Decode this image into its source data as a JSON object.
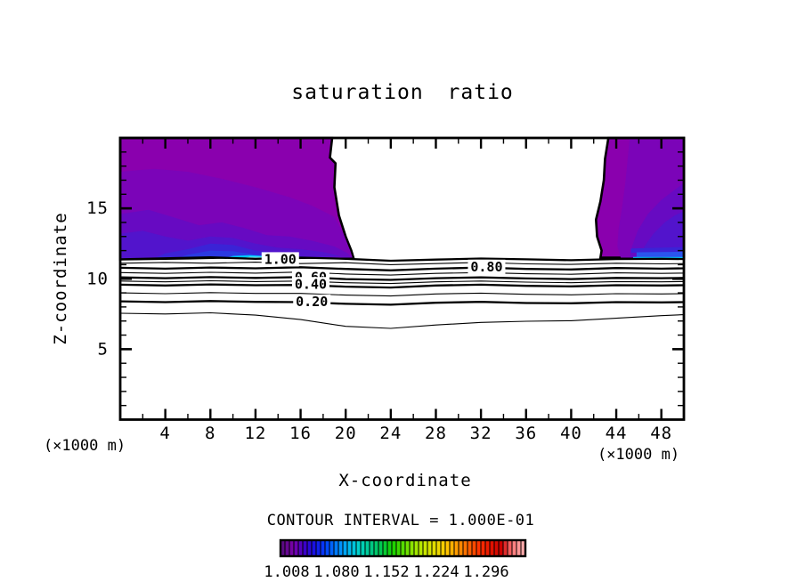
{
  "title": "saturation ratio",
  "contour_note": "CONTOUR INTERVAL = 1.000E-01",
  "axes": {
    "x_label": "X-coordinate",
    "z_label": "Z-coordinate",
    "x_unit": "(×1000 m)",
    "x_range": [
      0,
      50
    ],
    "z_range": [
      0,
      20
    ],
    "x_ticks_major": [
      4,
      8,
      12,
      16,
      20,
      24,
      28,
      32,
      36,
      40,
      44,
      48
    ],
    "x_ticks_minor": [
      2,
      6,
      10,
      14,
      18,
      22,
      26,
      30,
      34,
      38,
      42,
      46,
      50
    ],
    "z_ticks_major": [
      5,
      10,
      15
    ],
    "z_ticks_minor": [
      1,
      2,
      3,
      4,
      6,
      7,
      8,
      9,
      11,
      12,
      13,
      14,
      16,
      17,
      18,
      19
    ]
  },
  "colorbar": {
    "labels": [
      "1.008",
      "1.080",
      "1.152",
      "1.224",
      "1.296"
    ],
    "cells": 55,
    "stops": [
      "#5a0a82",
      "#7a00aa",
      "#3c00c8",
      "#1414e6",
      "#0046ff",
      "#0082ff",
      "#00b4f0",
      "#00d2c8",
      "#00c88c",
      "#00c850",
      "#14d200",
      "#55dc00",
      "#96e600",
      "#c8e600",
      "#e6dc00",
      "#ffc800",
      "#ff9600",
      "#ff6400",
      "#ff3200",
      "#e61400",
      "#cd0000",
      "#ff7878",
      "#ffaaaa"
    ]
  },
  "chart_data": {
    "type": "contour",
    "title": "saturation ratio",
    "xlabel": "X-coordinate",
    "ylabel": "Z-coordinate",
    "xlim": [
      0,
      50
    ],
    "zlim": [
      0,
      20
    ],
    "contour_interval": 0.1,
    "line_contours": [
      {
        "value": 1.0,
        "bold": true,
        "label_at": {
          "x": 14.2,
          "z": 11.38
        },
        "x": [
          0,
          4,
          8,
          12,
          16,
          20,
          24,
          28,
          32,
          36,
          40,
          44,
          48,
          50
        ],
        "z": [
          11.38,
          11.45,
          11.52,
          11.42,
          11.5,
          11.42,
          11.28,
          11.36,
          11.44,
          11.38,
          11.32,
          11.4,
          11.42,
          11.4
        ]
      },
      {
        "value": 0.9,
        "bold": false,
        "x": [
          0,
          4,
          8,
          12,
          16,
          20,
          24,
          28,
          32,
          36,
          40,
          44,
          48,
          50
        ],
        "z": [
          11.1,
          11.16,
          11.1,
          11.18,
          11.08,
          11.14,
          11.0,
          11.08,
          11.16,
          11.06,
          11.02,
          11.1,
          11.06,
          11.08
        ]
      },
      {
        "value": 0.8,
        "bold": true,
        "label_at": {
          "x": 32.5,
          "z": 10.85
        },
        "x": [
          0,
          4,
          8,
          12,
          16,
          20,
          24,
          28,
          32,
          36,
          40,
          44,
          48,
          50
        ],
        "z": [
          10.78,
          10.72,
          10.8,
          10.74,
          10.82,
          10.7,
          10.6,
          10.72,
          10.8,
          10.7,
          10.66,
          10.76,
          10.72,
          10.74
        ]
      },
      {
        "value": 0.7,
        "bold": false,
        "x": [
          0,
          4,
          8,
          12,
          16,
          20,
          24,
          28,
          32,
          36,
          40,
          44,
          48,
          50
        ],
        "z": [
          10.44,
          10.38,
          10.46,
          10.4,
          10.48,
          10.34,
          10.26,
          10.38,
          10.44,
          10.36,
          10.32,
          10.42,
          10.38,
          10.4
        ]
      },
      {
        "value": 0.6,
        "bold": true,
        "label_at": {
          "x": 16.9,
          "z": 10.1
        },
        "x": [
          0,
          4,
          8,
          12,
          16,
          20,
          24,
          28,
          32,
          36,
          40,
          44,
          48,
          50
        ],
        "z": [
          10.1,
          10.04,
          10.12,
          10.06,
          10.12,
          9.98,
          9.92,
          10.04,
          10.1,
          10.02,
          9.98,
          10.06,
          10.04,
          10.06
        ]
      },
      {
        "value": 0.5,
        "bold": false,
        "x": [
          0,
          4,
          8,
          12,
          16,
          20,
          24,
          28,
          32,
          36,
          40,
          44,
          48,
          50
        ],
        "z": [
          9.84,
          9.78,
          9.86,
          9.8,
          9.84,
          9.72,
          9.66,
          9.78,
          9.84,
          9.76,
          9.72,
          9.8,
          9.78,
          9.8
        ]
      },
      {
        "value": 0.4,
        "bold": true,
        "label_at": {
          "x": 16.9,
          "z": 9.62
        },
        "x": [
          0,
          4,
          8,
          12,
          16,
          20,
          24,
          28,
          32,
          36,
          40,
          44,
          48,
          50
        ],
        "z": [
          9.58,
          9.52,
          9.6,
          9.54,
          9.56,
          9.44,
          9.38,
          9.52,
          9.58,
          9.5,
          9.46,
          9.54,
          9.52,
          9.54
        ]
      },
      {
        "value": 0.3,
        "bold": false,
        "x": [
          0,
          4,
          8,
          12,
          16,
          20,
          24,
          28,
          32,
          36,
          40,
          44,
          48,
          50
        ],
        "z": [
          9.0,
          8.94,
          9.02,
          8.96,
          8.96,
          8.84,
          8.78,
          8.92,
          8.98,
          8.9,
          8.86,
          8.94,
          8.92,
          8.94
        ]
      },
      {
        "value": 0.2,
        "bold": true,
        "label_at": {
          "x": 17.0,
          "z": 8.38
        },
        "x": [
          0,
          4,
          8,
          12,
          16,
          20,
          24,
          28,
          32,
          36,
          40,
          44,
          48,
          50
        ],
        "z": [
          8.4,
          8.34,
          8.42,
          8.36,
          8.34,
          8.22,
          8.16,
          8.3,
          8.36,
          8.28,
          8.26,
          8.34,
          8.32,
          8.34
        ]
      },
      {
        "value": 0.1,
        "bold": false,
        "x": [
          0,
          4,
          8,
          12,
          16,
          20,
          24,
          28,
          32,
          36,
          40,
          44,
          48,
          50
        ],
        "z": [
          7.55,
          7.5,
          7.58,
          7.42,
          7.1,
          6.62,
          6.48,
          6.72,
          6.9,
          6.98,
          7.02,
          7.2,
          7.38,
          7.45
        ]
      }
    ],
    "filled_regions": [
      {
        "name": "left-band-1.0",
        "color": "#8a00ae",
        "outline": true,
        "points": [
          [
            0,
            20
          ],
          [
            18.8,
            20
          ],
          [
            18.6,
            18.6
          ],
          [
            19.1,
            18.2
          ],
          [
            19.0,
            16.5
          ],
          [
            19.4,
            14.5
          ],
          [
            20.0,
            13.0
          ],
          [
            20.5,
            12.0
          ],
          [
            20.7,
            11.45
          ],
          [
            18,
            11.52
          ],
          [
            14,
            11.45
          ],
          [
            10,
            11.52
          ],
          [
            6,
            11.45
          ],
          [
            2,
            11.4
          ],
          [
            0,
            11.38
          ]
        ]
      },
      {
        "name": "left-band-2",
        "color": "#7b04b8",
        "outline": false,
        "points": [
          [
            0,
            17.6
          ],
          [
            3,
            17.8
          ],
          [
            6,
            17.6
          ],
          [
            9,
            17.1
          ],
          [
            12,
            16.5
          ],
          [
            15,
            15.8
          ],
          [
            17,
            15.2
          ],
          [
            19,
            14.4
          ],
          [
            19.8,
            13.2
          ],
          [
            20.4,
            12.0
          ],
          [
            20.6,
            11.5
          ],
          [
            18,
            11.52
          ],
          [
            14,
            11.45
          ],
          [
            10,
            11.52
          ],
          [
            6,
            11.45
          ],
          [
            2,
            11.4
          ],
          [
            0,
            11.38
          ]
        ]
      },
      {
        "name": "left-band-3",
        "color": "#670ac2",
        "outline": false,
        "points": [
          [
            0,
            14.6
          ],
          [
            2.5,
            14.9
          ],
          [
            5,
            14.3
          ],
          [
            7,
            13.8
          ],
          [
            9,
            14.0
          ],
          [
            11,
            13.6
          ],
          [
            13,
            13.1
          ],
          [
            15,
            13.0
          ],
          [
            17,
            12.7
          ],
          [
            19,
            12.3
          ],
          [
            20.2,
            11.8
          ],
          [
            20.5,
            11.5
          ],
          [
            16,
            11.5
          ],
          [
            12,
            11.48
          ],
          [
            8,
            11.5
          ],
          [
            4,
            11.45
          ],
          [
            0,
            11.42
          ]
        ]
      },
      {
        "name": "left-band-4",
        "color": "#5214cc",
        "outline": false,
        "points": [
          [
            0,
            13.2
          ],
          [
            2,
            13.4
          ],
          [
            4,
            13.0
          ],
          [
            6,
            12.7
          ],
          [
            8,
            13.0
          ],
          [
            10,
            12.9
          ],
          [
            12,
            12.5
          ],
          [
            14,
            12.2
          ],
          [
            16,
            12.1
          ],
          [
            18,
            11.9
          ],
          [
            19.6,
            11.6
          ],
          [
            17,
            11.5
          ],
          [
            13,
            11.48
          ],
          [
            9,
            11.5
          ],
          [
            5,
            11.46
          ],
          [
            0,
            11.44
          ]
        ]
      },
      {
        "name": "left-band-5",
        "color": "#3b23d6",
        "outline": false,
        "points": [
          [
            3,
            11.45
          ],
          [
            4,
            11.8
          ],
          [
            6,
            12.1
          ],
          [
            8,
            12.5
          ],
          [
            10,
            12.4
          ],
          [
            12,
            12.0
          ],
          [
            14,
            11.8
          ],
          [
            16,
            11.6
          ],
          [
            17.5,
            11.45
          ]
        ]
      },
      {
        "name": "left-band-6",
        "color": "#2b3ae2",
        "outline": false,
        "points": [
          [
            5,
            11.45
          ],
          [
            6,
            11.7
          ],
          [
            8,
            12.0
          ],
          [
            10,
            11.95
          ],
          [
            12,
            11.7
          ],
          [
            14,
            11.55
          ],
          [
            15,
            11.45
          ]
        ]
      },
      {
        "name": "left-cyan-streak",
        "color": "#00c8ff",
        "outline": false,
        "points": [
          [
            9,
            11.42
          ],
          [
            10,
            11.62
          ],
          [
            11.5,
            11.68
          ],
          [
            13,
            11.6
          ],
          [
            14.5,
            11.5
          ],
          [
            15.5,
            11.42
          ]
        ]
      },
      {
        "name": "left-cyan-core",
        "color": "#8cffff",
        "outline": false,
        "points": [
          [
            10.5,
            11.42
          ],
          [
            11.5,
            11.56
          ],
          [
            12.5,
            11.56
          ],
          [
            13.5,
            11.42
          ]
        ]
      },
      {
        "name": "right-band-1.0",
        "color": "#8a00ae",
        "outline": true,
        "points": [
          [
            43.3,
            20
          ],
          [
            50,
            20
          ],
          [
            50,
            11.45
          ],
          [
            46,
            11.5
          ],
          [
            42.6,
            11.5
          ],
          [
            42.7,
            12.0
          ],
          [
            42.3,
            13.0
          ],
          [
            42.2,
            14.2
          ],
          [
            42.6,
            15.5
          ],
          [
            42.9,
            17.0
          ],
          [
            43.0,
            18.5
          ],
          [
            43.3,
            20
          ]
        ]
      },
      {
        "name": "right-band-2",
        "color": "#7b04b8",
        "outline": false,
        "points": [
          [
            45.2,
            20
          ],
          [
            50,
            20
          ],
          [
            50,
            11.5
          ],
          [
            44.4,
            11.5
          ],
          [
            44.1,
            12.3
          ],
          [
            44.2,
            13.5
          ],
          [
            44.5,
            15.0
          ],
          [
            44.8,
            16.8
          ],
          [
            45.0,
            18.4
          ],
          [
            45.2,
            20
          ]
        ]
      },
      {
        "name": "right-band-3",
        "color": "#670ac2",
        "outline": false,
        "points": [
          [
            50,
            16.8
          ],
          [
            50,
            11.5
          ],
          [
            45.2,
            11.5
          ],
          [
            45.4,
            12.3
          ],
          [
            45.9,
            13.4
          ],
          [
            46.8,
            14.6
          ],
          [
            48,
            15.6
          ],
          [
            49,
            16.2
          ],
          [
            50,
            16.8
          ]
        ]
      },
      {
        "name": "right-band-4",
        "color": "#5214cc",
        "outline": false,
        "points": [
          [
            50,
            14.8
          ],
          [
            50,
            11.5
          ],
          [
            46.2,
            11.5
          ],
          [
            46.5,
            12.3
          ],
          [
            47.3,
            13.2
          ],
          [
            48.3,
            14.0
          ],
          [
            49.2,
            14.5
          ],
          [
            50,
            14.8
          ]
        ]
      },
      {
        "name": "right-darkblue-stripe",
        "color": "#3b23d6",
        "outline": false,
        "points": [
          [
            45.3,
            12.15
          ],
          [
            50,
            12.25
          ],
          [
            50,
            11.85
          ],
          [
            45.3,
            11.85
          ]
        ]
      },
      {
        "name": "right-blue-stripe",
        "color": "#2b55ee",
        "outline": false,
        "points": [
          [
            45.8,
            11.88
          ],
          [
            50,
            11.92
          ],
          [
            50,
            11.55
          ],
          [
            45.8,
            11.55
          ]
        ]
      },
      {
        "name": "right-cyan-stripe",
        "color": "#00c8ff",
        "outline": false,
        "points": [
          [
            45.5,
            11.55
          ],
          [
            50,
            11.55
          ],
          [
            50,
            11.42
          ],
          [
            45.5,
            11.42
          ]
        ]
      }
    ]
  }
}
